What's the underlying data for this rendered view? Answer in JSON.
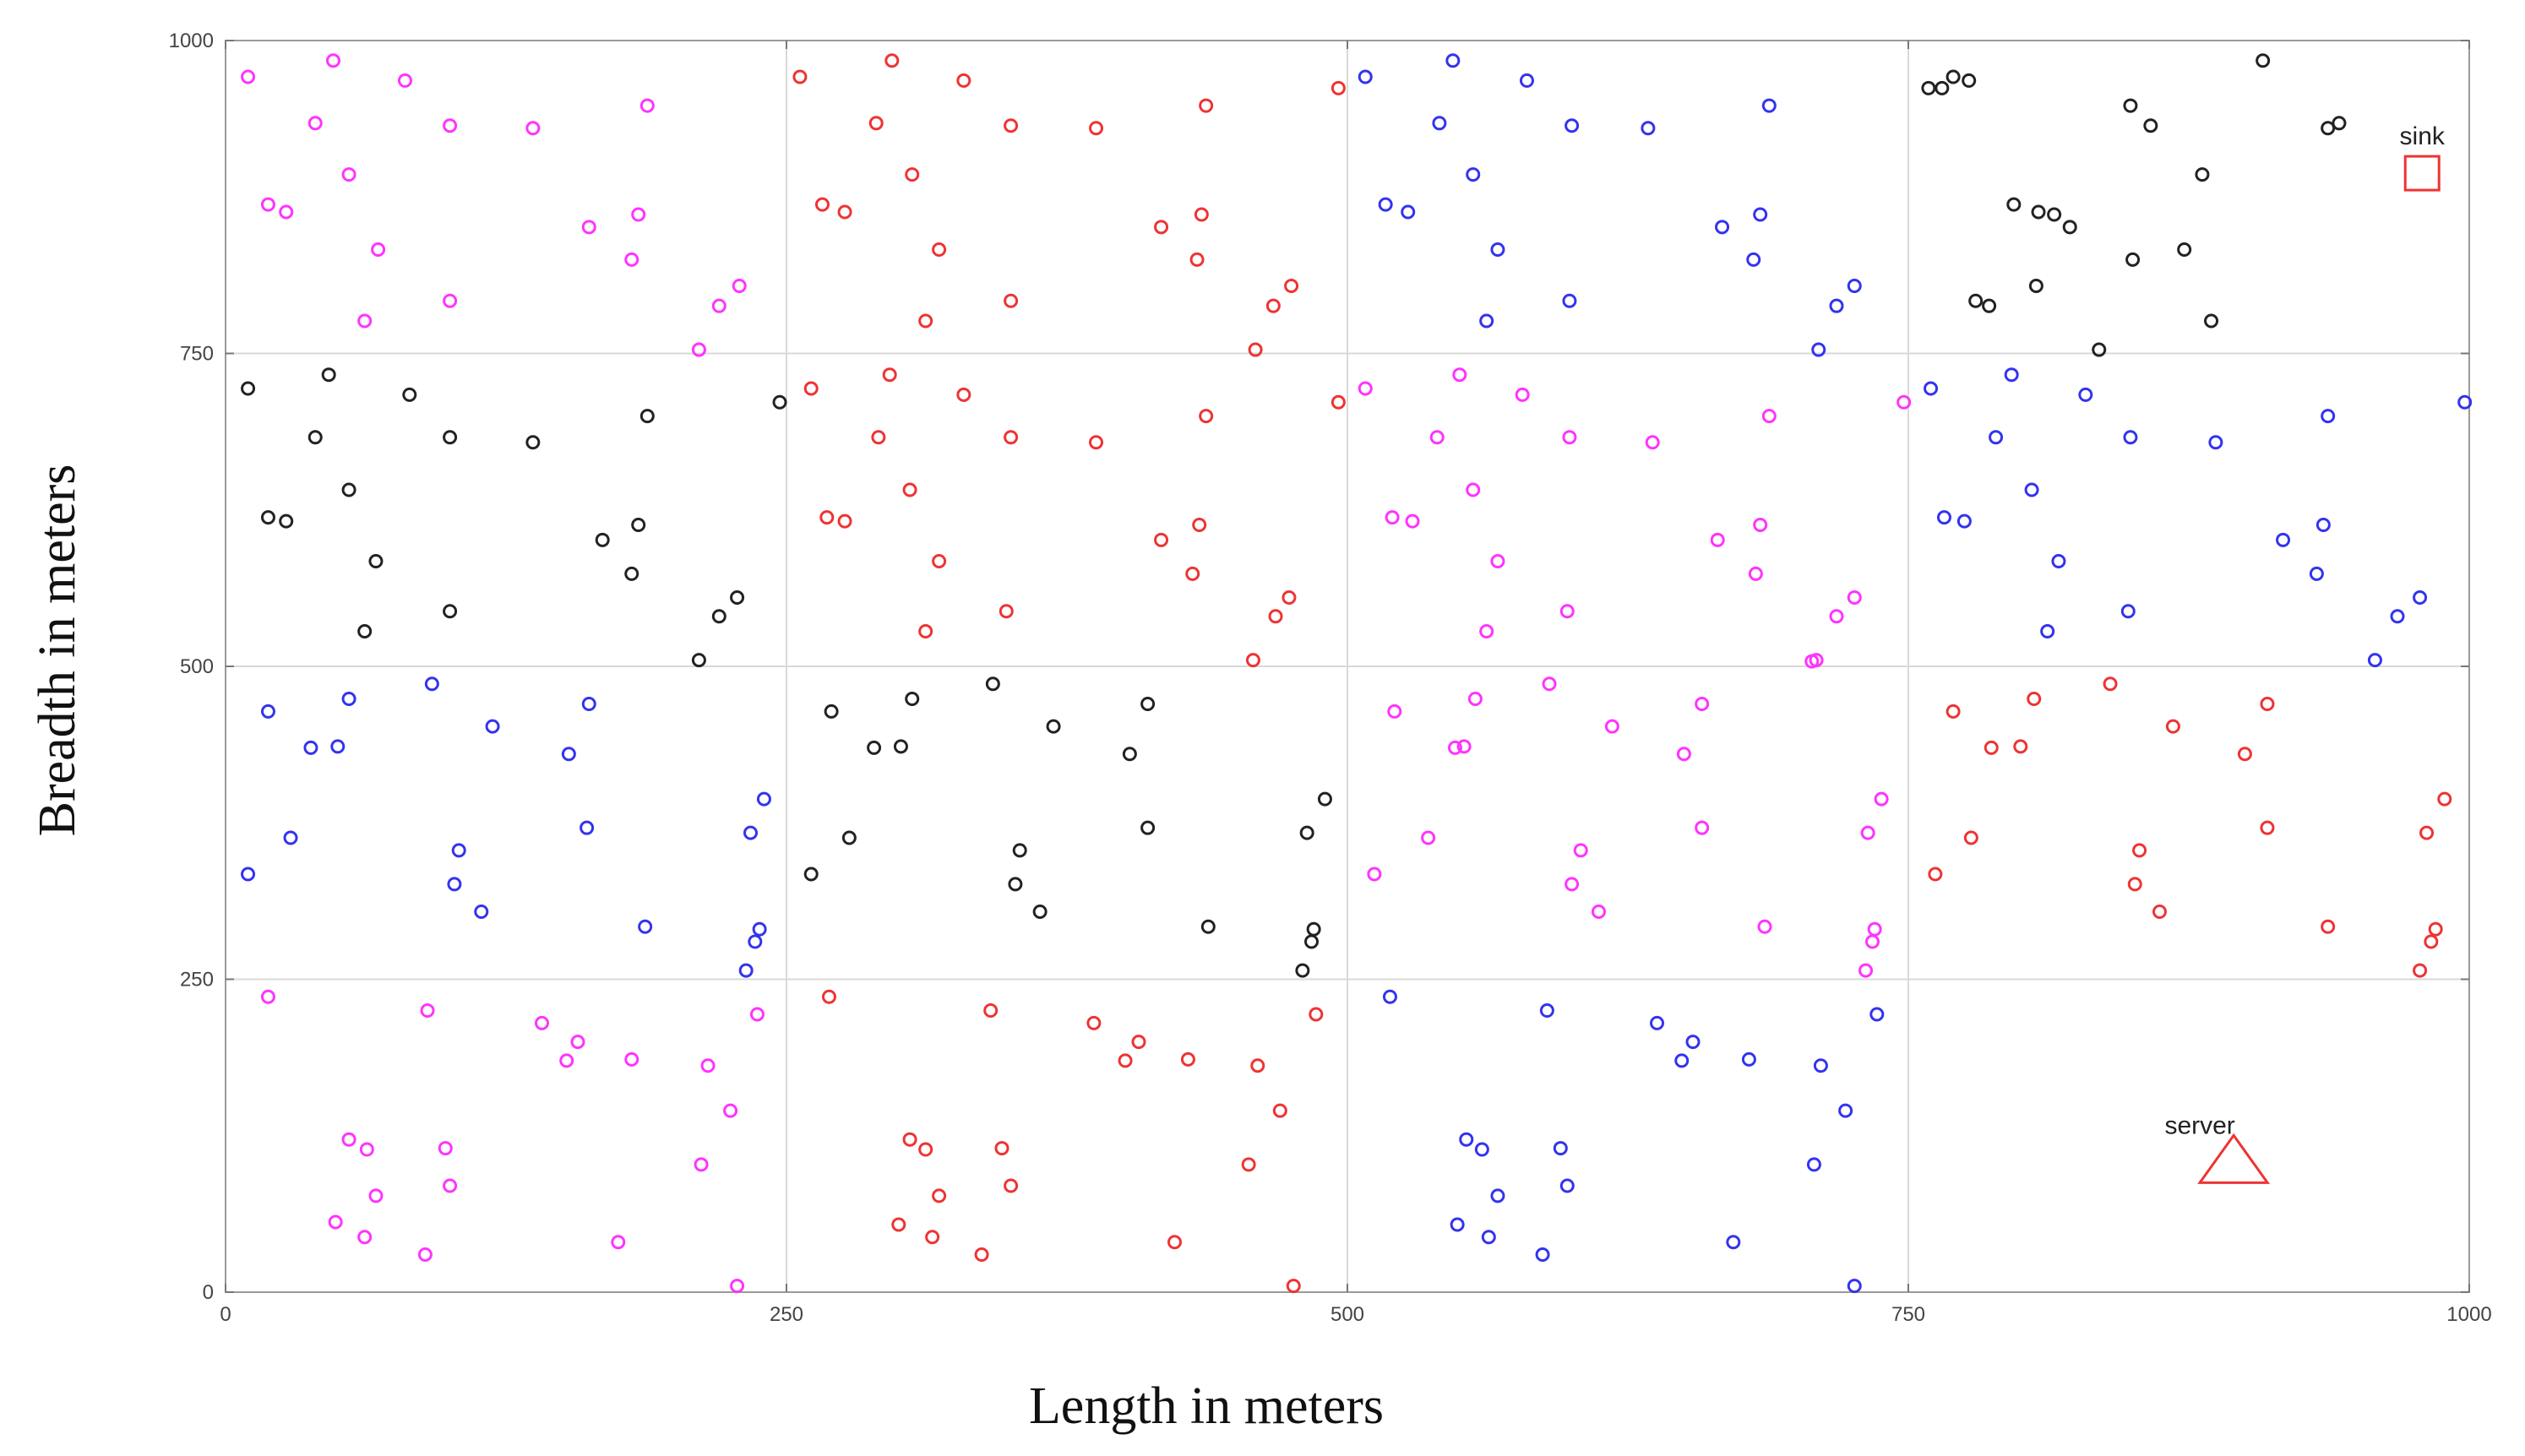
{
  "chart_data": {
    "type": "scatter",
    "title": "",
    "xlabel": "Length in meters",
    "ylabel": "Breadth in meters",
    "xlim": [
      0,
      1000
    ],
    "ylim": [
      0,
      1000
    ],
    "xticks": [
      0,
      250,
      500,
      750,
      1000
    ],
    "yticks": [
      0,
      250,
      500,
      750,
      1000
    ],
    "grid": true,
    "marker": "small-circle",
    "series": [
      {
        "color": "#ff33ff",
        "points": [
          [
            10,
            971
          ],
          [
            19,
            869
          ],
          [
            27,
            863
          ],
          [
            48,
            984
          ],
          [
            80,
            968
          ],
          [
            40,
            934
          ],
          [
            55,
            893
          ],
          [
            62,
            776
          ],
          [
            68,
            833
          ],
          [
            100,
            792
          ],
          [
            100,
            932
          ],
          [
            137,
            930
          ],
          [
            162,
            851
          ],
          [
            181,
            825
          ],
          [
            184,
            861
          ],
          [
            188,
            948
          ],
          [
            211,
            753
          ],
          [
            220,
            788
          ],
          [
            229,
            804
          ],
          [
            508,
            722
          ],
          [
            520,
            619
          ],
          [
            529,
            616
          ],
          [
            540,
            683
          ],
          [
            550,
            733
          ],
          [
            556,
            641
          ],
          [
            562,
            528
          ],
          [
            567,
            584
          ],
          [
            578,
            717
          ],
          [
            598,
            544
          ],
          [
            599,
            683
          ],
          [
            636,
            679
          ],
          [
            665,
            601
          ],
          [
            682,
            574
          ],
          [
            684,
            613
          ],
          [
            688,
            700
          ],
          [
            709,
            505
          ],
          [
            718,
            540
          ],
          [
            726,
            555
          ],
          [
            748,
            711
          ],
          [
            512,
            334
          ],
          [
            521,
            464
          ],
          [
            536,
            363
          ],
          [
            548,
            435
          ],
          [
            552,
            436
          ],
          [
            557,
            474
          ],
          [
            590,
            486
          ],
          [
            600,
            326
          ],
          [
            604,
            353
          ],
          [
            612,
            304
          ],
          [
            618,
            452
          ],
          [
            650,
            430
          ],
          [
            658,
            371
          ],
          [
            658,
            470
          ],
          [
            686,
            292
          ],
          [
            707,
            504
          ],
          [
            731,
            257
          ],
          [
            732,
            367
          ],
          [
            734,
            280
          ],
          [
            735,
            290
          ],
          [
            738,
            394
          ],
          [
            19,
            236
          ],
          [
            55,
            122
          ],
          [
            49,
            56
          ],
          [
            62,
            44
          ],
          [
            63,
            114
          ],
          [
            67,
            77
          ],
          [
            89,
            30
          ],
          [
            90,
            225
          ],
          [
            98,
            115
          ],
          [
            100,
            85
          ],
          [
            141,
            215
          ],
          [
            152,
            185
          ],
          [
            157,
            200
          ],
          [
            175,
            40
          ],
          [
            181,
            186
          ],
          [
            212,
            102
          ],
          [
            215,
            181
          ],
          [
            225,
            145
          ],
          [
            228,
            5
          ],
          [
            237,
            222
          ]
        ]
      },
      {
        "color": "#ee3333",
        "points": [
          [
            256,
            971
          ],
          [
            266,
            869
          ],
          [
            276,
            863
          ],
          [
            297,
            984
          ],
          [
            329,
            968
          ],
          [
            290,
            934
          ],
          [
            306,
            893
          ],
          [
            312,
            776
          ],
          [
            318,
            833
          ],
          [
            350,
            792
          ],
          [
            350,
            932
          ],
          [
            388,
            930
          ],
          [
            417,
            851
          ],
          [
            433,
            825
          ],
          [
            435,
            861
          ],
          [
            437,
            948
          ],
          [
            459,
            753
          ],
          [
            467,
            788
          ],
          [
            475,
            804
          ],
          [
            496,
            962
          ],
          [
            261,
            722
          ],
          [
            268,
            619
          ],
          [
            276,
            616
          ],
          [
            291,
            683
          ],
          [
            296,
            733
          ],
          [
            305,
            641
          ],
          [
            312,
            528
          ],
          [
            318,
            584
          ],
          [
            329,
            717
          ],
          [
            348,
            544
          ],
          [
            350,
            683
          ],
          [
            388,
            679
          ],
          [
            417,
            601
          ],
          [
            431,
            574
          ],
          [
            434,
            613
          ],
          [
            437,
            700
          ],
          [
            458,
            505
          ],
          [
            468,
            540
          ],
          [
            474,
            555
          ],
          [
            496,
            711
          ],
          [
            762,
            334
          ],
          [
            770,
            464
          ],
          [
            778,
            363
          ],
          [
            787,
            435
          ],
          [
            800,
            436
          ],
          [
            806,
            474
          ],
          [
            840,
            486
          ],
          [
            851,
            326
          ],
          [
            853,
            353
          ],
          [
            862,
            304
          ],
          [
            868,
            452
          ],
          [
            900,
            430
          ],
          [
            910,
            371
          ],
          [
            910,
            470
          ],
          [
            937,
            292
          ],
          [
            978,
            257
          ],
          [
            981,
            367
          ],
          [
            983,
            280
          ],
          [
            985,
            290
          ],
          [
            989,
            394
          ],
          [
            269,
            236
          ],
          [
            300,
            54
          ],
          [
            305,
            122
          ],
          [
            312,
            114
          ],
          [
            315,
            44
          ],
          [
            318,
            77
          ],
          [
            337,
            30
          ],
          [
            341,
            225
          ],
          [
            346,
            115
          ],
          [
            350,
            85
          ],
          [
            387,
            215
          ],
          [
            401,
            185
          ],
          [
            407,
            200
          ],
          [
            423,
            40
          ],
          [
            429,
            186
          ],
          [
            456,
            102
          ],
          [
            460,
            181
          ],
          [
            470,
            145
          ],
          [
            476,
            5
          ],
          [
            486,
            222
          ]
        ]
      },
      {
        "color": "#3333ee",
        "points": [
          [
            508,
            971
          ],
          [
            517,
            869
          ],
          [
            527,
            863
          ],
          [
            547,
            984
          ],
          [
            580,
            968
          ],
          [
            541,
            934
          ],
          [
            556,
            893
          ],
          [
            562,
            776
          ],
          [
            567,
            833
          ],
          [
            599,
            792
          ],
          [
            600,
            932
          ],
          [
            634,
            930
          ],
          [
            667,
            851
          ],
          [
            681,
            825
          ],
          [
            684,
            861
          ],
          [
            688,
            948
          ],
          [
            710,
            753
          ],
          [
            718,
            788
          ],
          [
            726,
            804
          ],
          [
            760,
            722
          ],
          [
            766,
            619
          ],
          [
            775,
            616
          ],
          [
            789,
            683
          ],
          [
            796,
            733
          ],
          [
            805,
            641
          ],
          [
            812,
            528
          ],
          [
            817,
            584
          ],
          [
            829,
            717
          ],
          [
            848,
            544
          ],
          [
            849,
            683
          ],
          [
            887,
            679
          ],
          [
            917,
            601
          ],
          [
            932,
            574
          ],
          [
            935,
            613
          ],
          [
            937,
            700
          ],
          [
            958,
            505
          ],
          [
            968,
            540
          ],
          [
            978,
            555
          ],
          [
            998,
            711
          ],
          [
            10,
            334
          ],
          [
            19,
            464
          ],
          [
            29,
            363
          ],
          [
            38,
            435
          ],
          [
            50,
            436
          ],
          [
            55,
            474
          ],
          [
            92,
            486
          ],
          [
            102,
            326
          ],
          [
            104,
            353
          ],
          [
            114,
            304
          ],
          [
            119,
            452
          ],
          [
            153,
            430
          ],
          [
            161,
            371
          ],
          [
            162,
            470
          ],
          [
            187,
            292
          ],
          [
            232,
            257
          ],
          [
            234,
            367
          ],
          [
            236,
            280
          ],
          [
            238,
            290
          ],
          [
            240,
            394
          ],
          [
            519,
            236
          ],
          [
            549,
            54
          ],
          [
            553,
            122
          ],
          [
            560,
            114
          ],
          [
            563,
            44
          ],
          [
            567,
            77
          ],
          [
            587,
            30
          ],
          [
            589,
            225
          ],
          [
            595,
            115
          ],
          [
            598,
            85
          ],
          [
            638,
            215
          ],
          [
            649,
            185
          ],
          [
            654,
            200
          ],
          [
            672,
            40
          ],
          [
            679,
            186
          ],
          [
            708,
            102
          ],
          [
            711,
            181
          ],
          [
            722,
            145
          ],
          [
            726,
            5
          ],
          [
            736,
            222
          ]
        ]
      },
      {
        "color": "#222222",
        "points": [
          [
            759,
            962
          ],
          [
            765,
            962
          ],
          [
            770,
            971
          ],
          [
            777,
            968
          ],
          [
            797,
            869
          ],
          [
            808,
            863
          ],
          [
            815,
            861
          ],
          [
            822,
            851
          ],
          [
            849,
            948
          ],
          [
            858,
            932
          ],
          [
            881,
            893
          ],
          [
            885,
            776
          ],
          [
            873,
            833
          ],
          [
            850,
            825
          ],
          [
            908,
            984
          ],
          [
            937,
            930
          ],
          [
            942,
            934
          ],
          [
            835,
            753
          ],
          [
            807,
            804
          ],
          [
            786,
            788
          ],
          [
            780,
            792
          ],
          [
            10,
            722
          ],
          [
            19,
            619
          ],
          [
            27,
            616
          ],
          [
            40,
            683
          ],
          [
            46,
            733
          ],
          [
            55,
            641
          ],
          [
            62,
            528
          ],
          [
            67,
            584
          ],
          [
            82,
            717
          ],
          [
            100,
            544
          ],
          [
            100,
            683
          ],
          [
            137,
            679
          ],
          [
            168,
            601
          ],
          [
            181,
            574
          ],
          [
            184,
            613
          ],
          [
            188,
            700
          ],
          [
            211,
            505
          ],
          [
            220,
            540
          ],
          [
            228,
            555
          ],
          [
            247,
            711
          ],
          [
            261,
            334
          ],
          [
            270,
            464
          ],
          [
            278,
            363
          ],
          [
            289,
            435
          ],
          [
            301,
            436
          ],
          [
            306,
            474
          ],
          [
            342,
            486
          ],
          [
            352,
            326
          ],
          [
            354,
            353
          ],
          [
            363,
            304
          ],
          [
            369,
            452
          ],
          [
            403,
            430
          ],
          [
            411,
            371
          ],
          [
            411,
            470
          ],
          [
            438,
            292
          ],
          [
            480,
            257
          ],
          [
            482,
            367
          ],
          [
            484,
            280
          ],
          [
            485,
            290
          ],
          [
            490,
            394
          ]
        ]
      }
    ],
    "annotations": [
      {
        "label": "sink",
        "shape": "square",
        "x": 979,
        "y": 894,
        "color": "#ee3333"
      },
      {
        "label": "server",
        "shape": "triangle",
        "x": 895,
        "y": 101,
        "color": "#ee3333"
      }
    ]
  }
}
